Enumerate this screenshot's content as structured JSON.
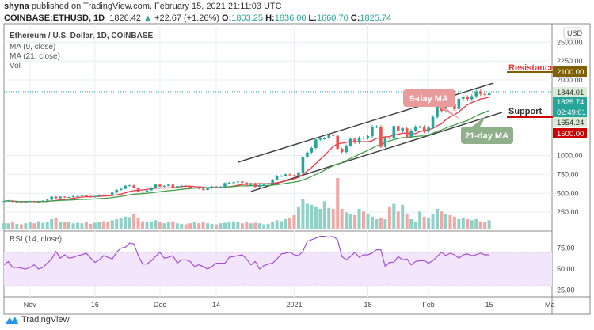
{
  "header": {
    "publisher": "shyna",
    "published_text": "published on TradingView.com, February 15, 2021 21:11:03 UTC",
    "symbol": "COINBASE:ETHUSD, 1D",
    "last": "1826.42",
    "change": "+22.67 (+1.26%)",
    "open_label": "O:",
    "open": "1803.25",
    "high_label": "H:",
    "high": "1836.00",
    "low_label": "L:",
    "low": "1660.70",
    "close_label": "C:",
    "close": "1825.74"
  },
  "legend": {
    "title": "Ethereum / U.S. Dollar, 1D, COINBASE",
    "ma9": "MA (9, close)",
    "ma21": "MA (21, close)",
    "vol": "Vol",
    "rsi": "RSI (14, close)"
  },
  "footer": {
    "brand": "TradingView"
  },
  "colors": {
    "up": "#26a69a",
    "down": "#ef5350",
    "ma9": "#f23645",
    "ma21": "#43a047",
    "rsi": "#a44fd6",
    "rsi_band": "#f3e5fc",
    "resistance": "#7f5f00",
    "support": "#cc0000",
    "trendline": "#444444"
  },
  "chart_data": {
    "type": "candlestick",
    "currency": "USD",
    "price_axis_ticks": [
      "2500.00",
      "2250.00",
      "2000.00",
      "1000.00",
      "750.00",
      "500.00",
      "250.00"
    ],
    "time_axis_ticks": [
      {
        "date": "2020-11-01",
        "label": "Nov"
      },
      {
        "date": "2020-11-16",
        "label": "16"
      },
      {
        "date": "2020-12-01",
        "label": "Dec"
      },
      {
        "date": "2020-12-14",
        "label": "14"
      },
      {
        "date": "2021-01-01",
        "label": "2021"
      },
      {
        "date": "2021-01-18",
        "label": "18"
      },
      {
        "date": "2021-02-01",
        "label": "Feb"
      },
      {
        "date": "2021-02-15",
        "label": "15"
      },
      {
        "date": "2021-03-01",
        "label": "Ma"
      }
    ],
    "months": [
      {
        "month": "2020-10",
        "start_day": 26,
        "close": [
          395,
          405,
          385,
          385,
          382,
          387
        ],
        "volume": [
          12,
          12,
          14,
          11,
          10,
          12
        ],
        "rsi": [
          55,
          59,
          52,
          52,
          51,
          50
        ]
      },
      {
        "month": "2020-11",
        "start_day": 1,
        "close": [
          395,
          383,
          388,
          402,
          415,
          455,
          435,
          455,
          445,
          450,
          462,
          462,
          475,
          460,
          448,
          460,
          480,
          478,
          470,
          510,
          545,
          560,
          600,
          605,
          570,
          520,
          518,
          540,
          575,
          615
        ],
        "volume": [
          14,
          12,
          16,
          13,
          15,
          20,
          22,
          14,
          15,
          14,
          12,
          13,
          12,
          14,
          11,
          13,
          15,
          16,
          14,
          18,
          20,
          22,
          25,
          24,
          30,
          22,
          16,
          14,
          16,
          18
        ],
        "rsi": [
          52,
          55,
          50,
          52,
          57,
          62,
          71,
          63,
          67,
          63,
          64,
          66,
          67,
          69,
          63,
          58,
          61,
          66,
          64,
          62,
          70,
          75,
          76,
          81,
          80,
          66,
          56,
          56,
          60,
          65
        ]
      },
      {
        "month": "2020-12",
        "start_day": 1,
        "close": [
          590,
          598,
          615,
          570,
          595,
          600,
          590,
          568,
          572,
          560,
          545,
          568,
          590,
          588,
          588,
          635,
          640,
          645,
          655,
          640,
          610,
          632,
          585,
          610,
          625,
          635,
          680,
          730,
          730,
          750,
          738
        ],
        "volume": [
          14,
          12,
          15,
          16,
          12,
          11,
          10,
          12,
          14,
          12,
          14,
          12,
          11,
          10,
          12,
          13,
          15,
          16,
          14,
          12,
          14,
          12,
          13,
          12,
          10,
          11,
          14,
          18,
          16,
          20,
          22
        ],
        "rsi": [
          70,
          63,
          64,
          66,
          57,
          61,
          61,
          59,
          53,
          55,
          53,
          50,
          53,
          57,
          57,
          57,
          64,
          65,
          66,
          67,
          62,
          55,
          59,
          50,
          54,
          56,
          57,
          62,
          68,
          69,
          70
        ]
      },
      {
        "month": "2021-01",
        "start_day": 1,
        "close": [
          730,
          775,
          975,
          1040,
          1100,
          1210,
          1225,
          1225,
          1270,
          1260,
          1090,
          1045,
          1130,
          1220,
          1170,
          1235,
          1230,
          1255,
          1380,
          1380,
          1115,
          1235,
          1230,
          1390,
          1320,
          1360,
          1245,
          1330,
          1380,
          1380,
          1315
        ],
        "volume": [
          28,
          45,
          60,
          50,
          48,
          45,
          40,
          55,
          42,
          40,
          100,
          40,
          33,
          30,
          28,
          40,
          35,
          30,
          25,
          20,
          22,
          20,
          45,
          50,
          35,
          48,
          30,
          20,
          15,
          35,
          25
        ],
        "rsi": [
          67,
          66,
          71,
          83,
          85,
          87,
          89,
          89,
          88,
          89,
          85,
          65,
          61,
          65,
          70,
          64,
          67,
          67,
          69,
          73,
          73,
          53,
          58,
          58,
          65,
          61,
          62,
          55,
          59,
          60,
          60
        ]
      },
      {
        "month": "2021-02",
        "start_day": 1,
        "close": [
          1370,
          1510,
          1660,
          1590,
          1720,
          1680,
          1615,
          1750,
          1770,
          1745,
          1785,
          1845,
          1815,
          1800,
          1826
        ],
        "volume": [
          22,
          30,
          40,
          35,
          30,
          28,
          25,
          20,
          22,
          20,
          18,
          20,
          16,
          14,
          18
        ],
        "rsi": [
          57,
          60,
          65,
          70,
          66,
          69,
          67,
          63,
          67,
          68,
          66,
          67,
          69,
          67,
          67
        ]
      }
    ],
    "first_open": 390,
    "trendlines": [
      {
        "name": "upper-channel",
        "from": {
          "date": "2020-12-19",
          "price": 911
        },
        "to": {
          "date": "2021-02-16",
          "price": 1958
        }
      },
      {
        "name": "lower-channel",
        "from": {
          "date": "2020-12-22",
          "price": 524
        },
        "to": {
          "date": "2021-02-18",
          "price": 1571
        }
      }
    ],
    "annotations": {
      "ma9_callout": "9-day MA",
      "ma21_callout": "21-day MA",
      "resistance_label": "Resistance",
      "support_label": "Support"
    },
    "price_labels": {
      "resistance": "2100.00",
      "high_line": "1844.01",
      "last_price": "1825.74",
      "countdown": "02:49:01",
      "low_line": "1654.24",
      "support": "1500.00"
    },
    "rsi_axis_ticks": [
      "75.00",
      "50.00",
      "25.00"
    ],
    "rsi_band": [
      30,
      70
    ]
  }
}
